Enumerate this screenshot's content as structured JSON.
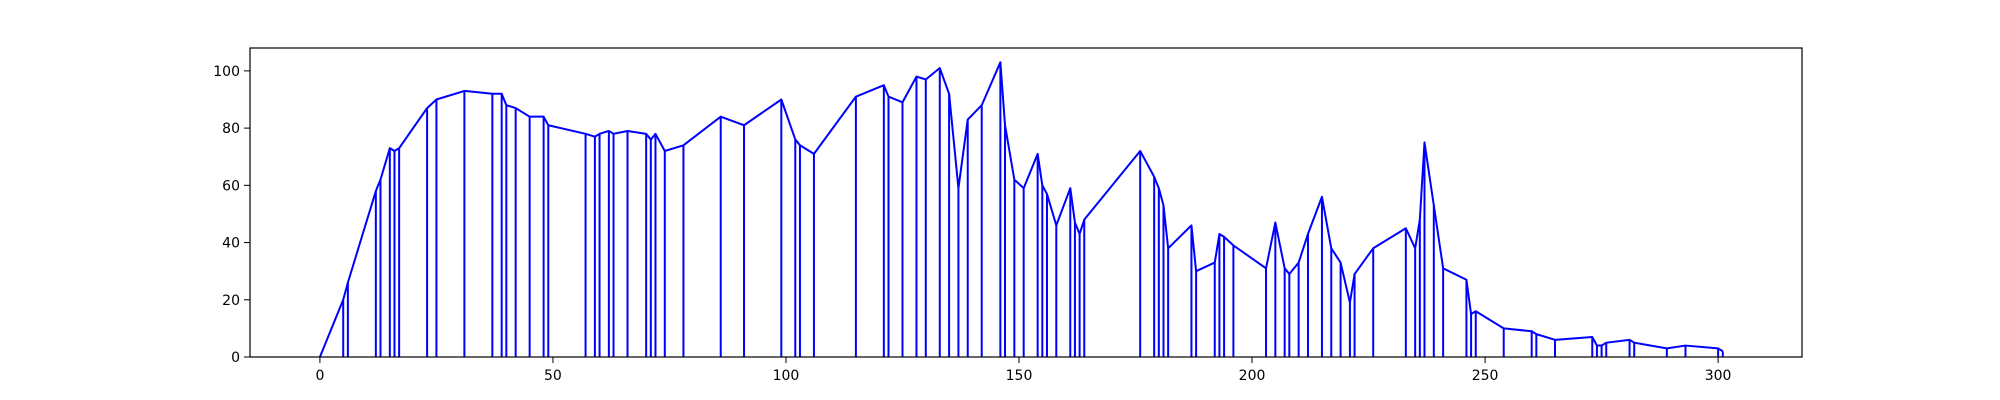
{
  "chart_data": {
    "type": "line",
    "title": "",
    "xlabel": "",
    "ylabel": "",
    "xlim": [
      -15,
      318
    ],
    "ylim": [
      0,
      108
    ],
    "grid": false,
    "line_color": "#0000ff",
    "xticks": [
      0,
      50,
      100,
      150,
      200,
      250,
      300
    ],
    "yticks": [
      0,
      20,
      40,
      60,
      80,
      100
    ],
    "x": [
      0,
      5,
      6,
      12,
      13,
      15,
      16,
      17,
      23,
      25,
      31,
      37,
      39,
      40,
      42,
      45,
      48,
      49,
      57,
      59,
      60,
      62,
      63,
      66,
      70,
      71,
      72,
      74,
      78,
      86,
      91,
      99,
      102,
      103,
      106,
      115,
      121,
      122,
      125,
      128,
      130,
      133,
      135,
      137,
      139,
      142,
      146,
      147,
      149,
      151,
      154,
      155,
      156,
      158,
      161,
      162,
      163,
      164,
      176,
      179,
      180,
      181,
      182,
      187,
      188,
      192,
      193,
      194,
      196,
      203,
      205,
      207,
      208,
      210,
      212,
      215,
      217,
      219,
      221,
      222,
      226,
      233,
      235,
      236,
      237,
      239,
      241,
      246,
      247,
      248,
      254,
      260,
      261,
      265,
      273,
      274,
      275,
      276,
      281,
      282,
      289,
      293,
      300,
      301
    ],
    "y": [
      0,
      20,
      26,
      58,
      62,
      73,
      72,
      73,
      87,
      90,
      93,
      92,
      92,
      88,
      87,
      84,
      84,
      81,
      78,
      77,
      78,
      79,
      78,
      79,
      78,
      76,
      78,
      72,
      74,
      84,
      81,
      90,
      76,
      74,
      71,
      91,
      95,
      91,
      89,
      98,
      97,
      101,
      92,
      59,
      83,
      88,
      103,
      81,
      62,
      59,
      71,
      60,
      57,
      46,
      59,
      47,
      43,
      48,
      72,
      63,
      59,
      53,
      38,
      46,
      30,
      33,
      43,
      42,
      39,
      31,
      47,
      31,
      29,
      33,
      43,
      56,
      38,
      33,
      19,
      29,
      38,
      45,
      38,
      48,
      75,
      53,
      31,
      27,
      15,
      16,
      10,
      9,
      8,
      6,
      7,
      4,
      4,
      5,
      6,
      5,
      3,
      4,
      3,
      2
    ]
  }
}
